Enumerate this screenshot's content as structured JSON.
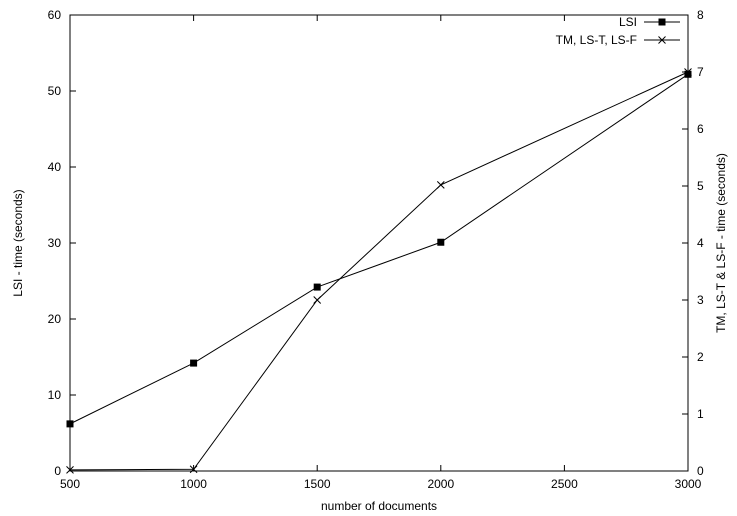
{
  "chart_data": {
    "type": "line",
    "xlabel": "number of documents",
    "ylabel": "LSI  - time (seconds)",
    "y2label": "TM, LS-T & LS-F  - time (seconds)",
    "xlim": [
      500,
      3000
    ],
    "ylim": [
      0,
      60
    ],
    "y2lim": [
      0,
      8
    ],
    "x_ticks": [
      500,
      1000,
      1500,
      2000,
      2500,
      3000
    ],
    "y_ticks": [
      0,
      10,
      20,
      30,
      40,
      50,
      60
    ],
    "y2_ticks": [
      0,
      1,
      2,
      3,
      4,
      5,
      6,
      7,
      8
    ],
    "grid": false,
    "legend_position": "top-right",
    "series": [
      {
        "name": "LSI",
        "axis": "left",
        "marker": "filled-square",
        "color": "#000000",
        "x": [
          500,
          1000,
          1500,
          2000,
          3000
        ],
        "values": [
          6.2,
          14.2,
          24.2,
          30.1,
          52.2
        ]
      },
      {
        "name": "TM, LS-T, LS-F",
        "axis": "right",
        "marker": "cross",
        "color": "#000000",
        "x": [
          500,
          1000,
          1500,
          2000,
          3000
        ],
        "values": [
          0.02,
          0.03,
          3.0,
          5.02,
          7.0
        ]
      }
    ]
  }
}
